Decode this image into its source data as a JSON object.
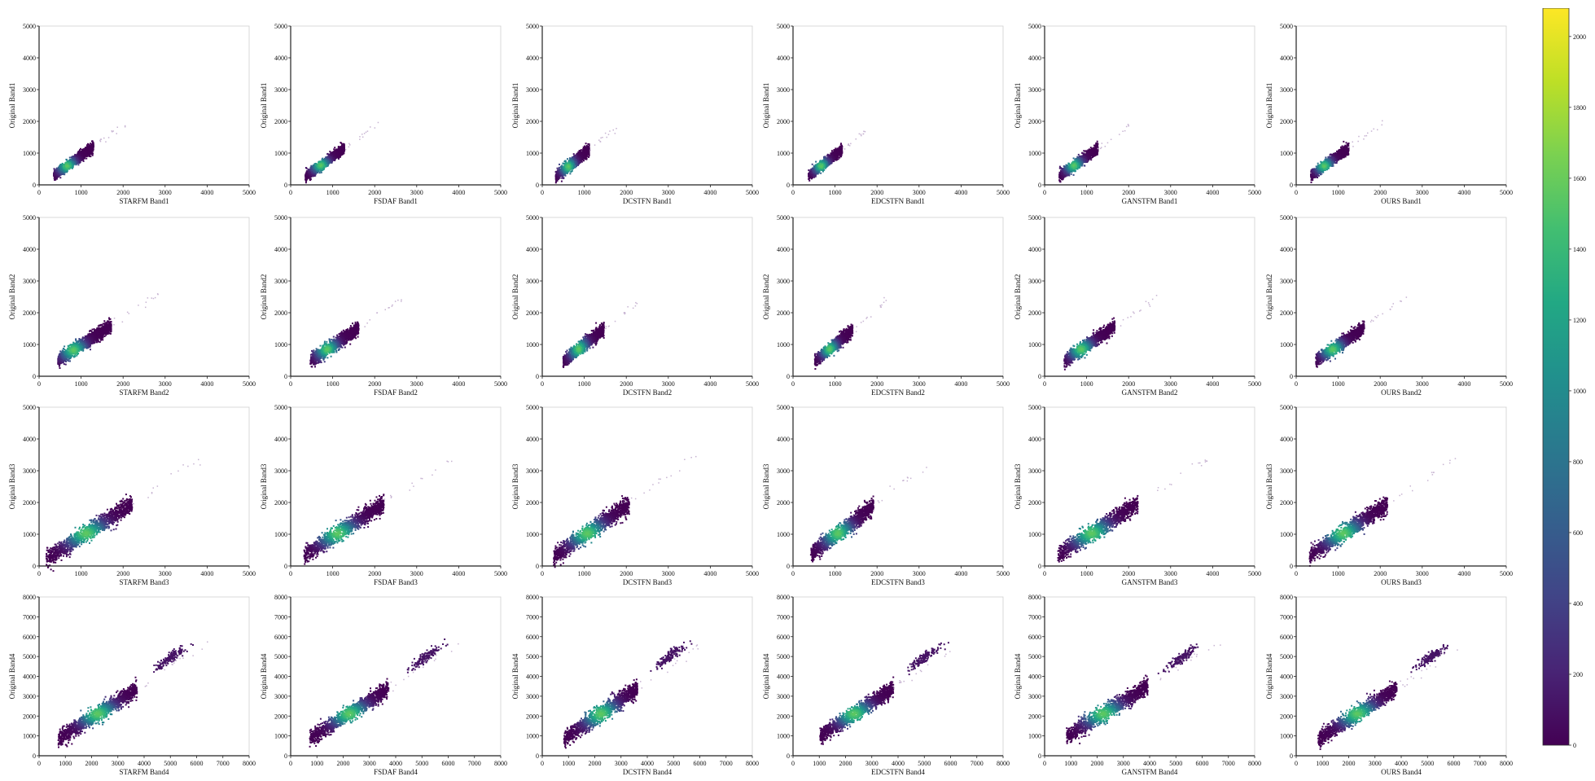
{
  "chart_data": {
    "type": "heatmap",
    "colormap": [
      "#440154",
      "#482475",
      "#414487",
      "#355f8d",
      "#2a788e",
      "#21908d",
      "#22a884",
      "#42be71",
      "#7ad151",
      "#bddf26",
      "#fde725"
    ],
    "colorbar": {
      "ticks": [
        0,
        200,
        400,
        600,
        800,
        1000,
        1200,
        1400,
        1600,
        1800,
        2000
      ],
      "range": [
        0,
        2080
      ]
    },
    "band_axes": [
      {
        "xlim": [
          0,
          5000
        ],
        "ylim": [
          0,
          5000
        ],
        "xticks": [
          0,
          1000,
          2000,
          3000,
          4000,
          5000
        ],
        "yticks": [
          0,
          1000,
          2000,
          3000,
          4000,
          5000
        ]
      },
      {
        "xlim": [
          0,
          5000
        ],
        "ylim": [
          0,
          5000
        ],
        "xticks": [
          0,
          1000,
          2000,
          3000,
          4000,
          5000
        ],
        "yticks": [
          0,
          1000,
          2000,
          3000,
          4000,
          5000
        ]
      },
      {
        "xlim": [
          0,
          5000
        ],
        "ylim": [
          0,
          5000
        ],
        "xticks": [
          0,
          1000,
          2000,
          3000,
          4000,
          5000
        ],
        "yticks": [
          0,
          1000,
          2000,
          3000,
          4000,
          5000
        ]
      },
      {
        "xlim": [
          0,
          8000
        ],
        "ylim": [
          0,
          8000
        ],
        "xticks": [
          0,
          1000,
          2000,
          3000,
          4000,
          5000,
          6000,
          7000,
          8000
        ],
        "yticks": [
          0,
          1000,
          2000,
          3000,
          4000,
          5000,
          6000,
          7000,
          8000
        ]
      }
    ],
    "panels": [
      {
        "xlabel": "STARFM Band1",
        "ylabel": "Original Band1",
        "band": 0,
        "scatter": {
          "x0": 330,
          "x1": 1280,
          "slope": 0.95,
          "spread": 180,
          "peak": [
            650,
            620
          ]
        }
      },
      {
        "xlabel": "FSDAF Band1",
        "ylabel": "Original Band1",
        "band": 0,
        "scatter": {
          "x0": 330,
          "x1": 1260,
          "slope": 0.95,
          "spread": 170,
          "peak": [
            700,
            640
          ]
        }
      },
      {
        "xlabel": "DCSTFN Band1",
        "ylabel": "Original Band1",
        "band": 0,
        "scatter": {
          "x0": 300,
          "x1": 1100,
          "slope": 1.05,
          "spread": 190,
          "peak": [
            600,
            600
          ]
        }
      },
      {
        "xlabel": "EDCSTFN Band1",
        "ylabel": "Original Band1",
        "band": 0,
        "scatter": {
          "x0": 350,
          "x1": 1150,
          "slope": 1.02,
          "spread": 170,
          "peak": [
            650,
            620
          ]
        }
      },
      {
        "xlabel": "GANSTFM Band1",
        "ylabel": "Original Band1",
        "band": 0,
        "scatter": {
          "x0": 330,
          "x1": 1250,
          "slope": 0.95,
          "spread": 180,
          "peak": [
            680,
            630
          ]
        }
      },
      {
        "xlabel": "OURS Band1",
        "ylabel": "Original Band1",
        "band": 0,
        "scatter": {
          "x0": 330,
          "x1": 1230,
          "slope": 0.97,
          "spread": 170,
          "peak": [
            650,
            620
          ]
        }
      },
      {
        "xlabel": "STARFM Band2",
        "ylabel": "Original Band2",
        "band": 1,
        "scatter": {
          "x0": 430,
          "x1": 1700,
          "slope": 0.85,
          "spread": 230,
          "peak": [
            800,
            850
          ]
        }
      },
      {
        "xlabel": "FSDAF Band2",
        "ylabel": "Original Band2",
        "band": 1,
        "scatter": {
          "x0": 450,
          "x1": 1600,
          "slope": 0.9,
          "spread": 220,
          "peak": [
            850,
            870
          ]
        }
      },
      {
        "xlabel": "DCSTFN Band2",
        "ylabel": "Original Band2",
        "band": 1,
        "scatter": {
          "x0": 480,
          "x1": 1450,
          "slope": 1.05,
          "spread": 230,
          "peak": [
            850,
            880
          ]
        }
      },
      {
        "xlabel": "EDCSTFN Band2",
        "ylabel": "Original Band2",
        "band": 1,
        "scatter": {
          "x0": 500,
          "x1": 1400,
          "slope": 1.1,
          "spread": 200,
          "peak": [
            850,
            880
          ]
        }
      },
      {
        "xlabel": "GANSTFM Band2",
        "ylabel": "Original Band2",
        "band": 1,
        "scatter": {
          "x0": 450,
          "x1": 1650,
          "slope": 0.9,
          "spread": 220,
          "peak": [
            850,
            870
          ]
        }
      },
      {
        "xlabel": "OURS Band2",
        "ylabel": "Original Band2",
        "band": 1,
        "scatter": {
          "x0": 450,
          "x1": 1600,
          "slope": 0.93,
          "spread": 210,
          "peak": [
            850,
            870
          ]
        }
      },
      {
        "xlabel": "STARFM Band3",
        "ylabel": "Original Band3",
        "band": 2,
        "scatter": {
          "x0": 150,
          "x1": 2200,
          "slope": 0.85,
          "spread": 300,
          "peak": [
            1100,
            1050
          ]
        }
      },
      {
        "xlabel": "FSDAF Band3",
        "ylabel": "Original Band3",
        "band": 2,
        "scatter": {
          "x0": 300,
          "x1": 2200,
          "slope": 0.85,
          "spread": 290,
          "peak": [
            1100,
            1050
          ]
        }
      },
      {
        "xlabel": "DCSTFN Band3",
        "ylabel": "Original Band3",
        "band": 2,
        "scatter": {
          "x0": 250,
          "x1": 2050,
          "slope": 0.92,
          "spread": 300,
          "peak": [
            1050,
            1050
          ]
        }
      },
      {
        "xlabel": "EDCSTFN Band3",
        "ylabel": "Original Band3",
        "band": 2,
        "scatter": {
          "x0": 400,
          "x1": 1900,
          "slope": 1.0,
          "spread": 290,
          "peak": [
            1050,
            1050
          ]
        }
      },
      {
        "xlabel": "GANSTFM Band3",
        "ylabel": "Original Band3",
        "band": 2,
        "scatter": {
          "x0": 300,
          "x1": 2200,
          "slope": 0.85,
          "spread": 300,
          "peak": [
            1100,
            1050
          ]
        }
      },
      {
        "xlabel": "OURS Band3",
        "ylabel": "Original Band3",
        "band": 2,
        "scatter": {
          "x0": 300,
          "x1": 2150,
          "slope": 0.87,
          "spread": 290,
          "peak": [
            1100,
            1050
          ]
        }
      },
      {
        "xlabel": "STARFM Band4",
        "ylabel": "Original Band4",
        "band": 3,
        "scatter": {
          "x0": 700,
          "x1": 3700,
          "slope": 0.85,
          "spread": 450,
          "peak": [
            2200,
            2150
          ],
          "cluster": [
            5000,
            5000
          ]
        }
      },
      {
        "xlabel": "FSDAF Band4",
        "ylabel": "Original Band4",
        "band": 3,
        "scatter": {
          "x0": 700,
          "x1": 3700,
          "slope": 0.85,
          "spread": 450,
          "peak": [
            2200,
            2150
          ],
          "cluster": [
            5100,
            5000
          ]
        }
      },
      {
        "xlabel": "DCSTFN Band4",
        "ylabel": "Original Band4",
        "band": 3,
        "scatter": {
          "x0": 800,
          "x1": 3600,
          "slope": 0.9,
          "spread": 470,
          "peak": [
            2200,
            2150
          ],
          "cluster": [
            4800,
            5000
          ]
        }
      },
      {
        "xlabel": "EDCSTFN Band4",
        "ylabel": "Original Band4",
        "band": 3,
        "scatter": {
          "x0": 1000,
          "x1": 3800,
          "slope": 0.85,
          "spread": 430,
          "peak": [
            2300,
            2150
          ],
          "cluster": [
            5000,
            5000
          ]
        }
      },
      {
        "xlabel": "GANSTFM Band4",
        "ylabel": "Original Band4",
        "band": 3,
        "scatter": {
          "x0": 800,
          "x1": 3900,
          "slope": 0.82,
          "spread": 450,
          "peak": [
            2200,
            2150
          ],
          "cluster": [
            5200,
            5000
          ]
        }
      },
      {
        "xlabel": "OURS Band4",
        "ylabel": "Original Band4",
        "band": 3,
        "scatter": {
          "x0": 800,
          "x1": 3800,
          "slope": 0.85,
          "spread": 440,
          "peak": [
            2300,
            2150
          ],
          "cluster": [
            5100,
            5000
          ]
        }
      }
    ]
  }
}
